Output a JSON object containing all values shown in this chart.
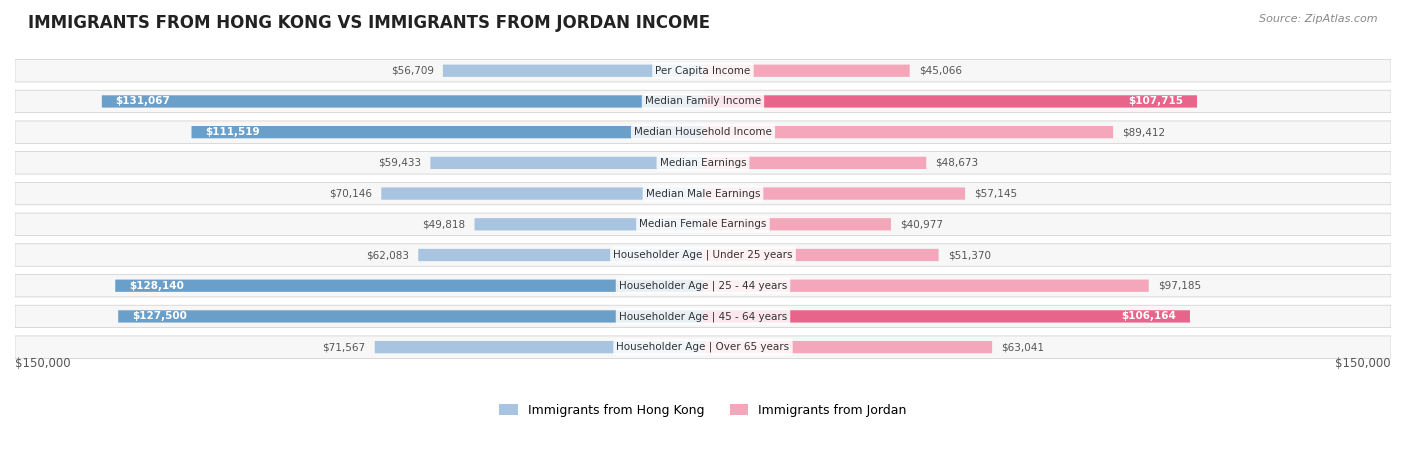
{
  "title": "IMMIGRANTS FROM HONG KONG VS IMMIGRANTS FROM JORDAN INCOME",
  "source": "Source: ZipAtlas.com",
  "categories": [
    "Per Capita Income",
    "Median Family Income",
    "Median Household Income",
    "Median Earnings",
    "Median Male Earnings",
    "Median Female Earnings",
    "Householder Age | Under 25 years",
    "Householder Age | 25 - 44 years",
    "Householder Age | 45 - 64 years",
    "Householder Age | Over 65 years"
  ],
  "hk_values": [
    56709,
    131067,
    111519,
    59433,
    70146,
    49818,
    62083,
    128140,
    127500,
    71567
  ],
  "jordan_values": [
    45066,
    107715,
    89412,
    48673,
    57145,
    40977,
    51370,
    97185,
    106164,
    63041
  ],
  "hk_labels": [
    "$56,709",
    "$131,067",
    "$111,519",
    "$59,433",
    "$70,146",
    "$49,818",
    "$62,083",
    "$128,140",
    "$127,500",
    "$71,567"
  ],
  "jordan_labels": [
    "$45,066",
    "$107,715",
    "$89,412",
    "$48,673",
    "$57,145",
    "$40,977",
    "$51,370",
    "$97,185",
    "$106,164",
    "$63,041"
  ],
  "hk_color_light": "#a8c4e0",
  "hk_color_dark": "#6a9fca",
  "jordan_color_light": "#f4a7bb",
  "jordan_color_dark": "#e8648a",
  "hk_label_threshold": 100000,
  "jordan_label_threshold": 100000,
  "axis_max": 150000,
  "bg_color": "#ffffff",
  "row_bg_color": "#f0f0f0",
  "legend_hk": "Immigrants from Hong Kong",
  "legend_jordan": "Immigrants from Jordan",
  "xlabel_left": "$150,000",
  "xlabel_right": "$150,000"
}
